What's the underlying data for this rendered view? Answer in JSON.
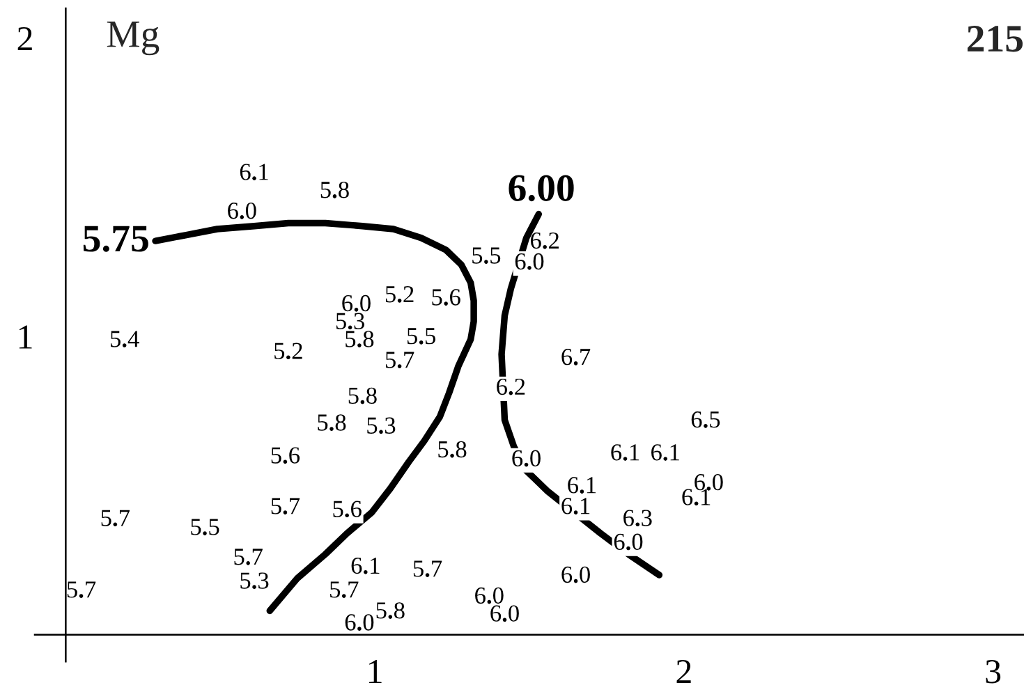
{
  "chart_data": {
    "type": "line",
    "title": "215",
    "ylabel": "Mg",
    "xlim": [
      -0.1,
      3.1
    ],
    "ylim": [
      -0.09,
      2.1
    ],
    "xticks": [
      1,
      2,
      3
    ],
    "yticks": [
      1,
      2
    ],
    "line_style": "solid",
    "series": [
      {
        "name": "5.75",
        "color": "#000000",
        "x": [
          0.29,
          0.39,
          0.49,
          0.61,
          0.72,
          0.84,
          0.96,
          1.06,
          1.15,
          1.23,
          1.28,
          1.31,
          1.32,
          1.32,
          1.31,
          1.27,
          1.24,
          1.21,
          1.16,
          1.11,
          1.05,
          0.99,
          0.91,
          0.84,
          0.75,
          0.66
        ],
        "values": [
          1.32,
          1.34,
          1.36,
          1.37,
          1.38,
          1.38,
          1.37,
          1.36,
          1.33,
          1.29,
          1.24,
          1.18,
          1.12,
          1.05,
          0.99,
          0.9,
          0.81,
          0.73,
          0.65,
          0.58,
          0.49,
          0.41,
          0.34,
          0.27,
          0.19,
          0.08
        ]
      },
      {
        "name": "6.00",
        "color": "#000000",
        "x": [
          1.53,
          1.49,
          1.44,
          1.42,
          1.41,
          1.42,
          1.45,
          1.49,
          1.56,
          1.73,
          1.82,
          1.92
        ],
        "values": [
          1.41,
          1.33,
          1.16,
          1.07,
          0.94,
          0.72,
          0.63,
          0.55,
          0.48,
          0.34,
          0.27,
          0.2
        ]
      },
      {
        "type": "scatter",
        "marker": "circle",
        "color": "#000000",
        "x": [
          0.57,
          0.61,
          0.87,
          1.36,
          1.55,
          1.5,
          1.08,
          1.23,
          0.94,
          0.92,
          0.95,
          1.15,
          0.19,
          0.72,
          1.08,
          1.65,
          1.44,
          0.96,
          0.86,
          1.02,
          2.07,
          0.71,
          1.25,
          1.49,
          1.81,
          1.94,
          2.08,
          1.67,
          1.65,
          2.04,
          0.16,
          0.45,
          0.71,
          0.91,
          1.85,
          1.82,
          0.59,
          0.61,
          0.97,
          1.17,
          0.9,
          0.05,
          1.65,
          1.05,
          0.95,
          1.37,
          1.42
        ],
        "values": [
          1.4,
          1.53,
          1.47,
          1.25,
          1.3,
          1.23,
          1.12,
          1.11,
          1.09,
          1.03,
          0.97,
          0.98,
          0.97,
          0.93,
          0.9,
          0.91,
          0.81,
          0.78,
          0.69,
          0.68,
          0.7,
          0.58,
          0.6,
          0.57,
          0.59,
          0.59,
          0.49,
          0.48,
          0.41,
          0.44,
          0.37,
          0.34,
          0.41,
          0.4,
          0.37,
          0.29,
          0.24,
          0.16,
          0.21,
          0.2,
          0.13,
          0.13,
          0.18,
          0.06,
          0.02,
          0.11,
          0.05
        ]
      }
    ],
    "annotations": [
      {
        "text": "6.0",
        "x": 0.57,
        "y": 1.4
      },
      {
        "text": "6.1",
        "x": 0.61,
        "y": 1.53
      },
      {
        "text": "5.8",
        "x": 0.87,
        "y": 1.47
      },
      {
        "text": "5.5",
        "x": 1.36,
        "y": 1.25
      },
      {
        "text": "6.2",
        "x": 1.55,
        "y": 1.3
      },
      {
        "text": "6.0",
        "x": 1.5,
        "y": 1.23
      },
      {
        "text": "5.2",
        "x": 1.08,
        "y": 1.12
      },
      {
        "text": "5.6",
        "x": 1.23,
        "y": 1.11
      },
      {
        "text": "6.0",
        "x": 0.94,
        "y": 1.09
      },
      {
        "text": "5.3",
        "x": 0.92,
        "y": 1.03
      },
      {
        "text": "5.8",
        "x": 0.95,
        "y": 0.97
      },
      {
        "text": "5.5",
        "x": 1.15,
        "y": 0.98
      },
      {
        "text": "5.4",
        "x": 0.19,
        "y": 0.97
      },
      {
        "text": "5.2",
        "x": 0.72,
        "y": 0.93
      },
      {
        "text": "5.7",
        "x": 1.08,
        "y": 0.9
      },
      {
        "text": "6.7",
        "x": 1.65,
        "y": 0.91
      },
      {
        "text": "6.2",
        "x": 1.44,
        "y": 0.81
      },
      {
        "text": "5.8",
        "x": 0.96,
        "y": 0.78
      },
      {
        "text": "5.8",
        "x": 0.86,
        "y": 0.69
      },
      {
        "text": "5.3",
        "x": 1.02,
        "y": 0.68
      },
      {
        "text": "6.5",
        "x": 2.07,
        "y": 0.7
      },
      {
        "text": "5.6",
        "x": 0.71,
        "y": 0.58
      },
      {
        "text": "5.8",
        "x": 1.25,
        "y": 0.6
      },
      {
        "text": "6.0",
        "x": 1.49,
        "y": 0.57
      },
      {
        "text": "6.1",
        "x": 1.81,
        "y": 0.59
      },
      {
        "text": "6.1",
        "x": 1.94,
        "y": 0.59
      },
      {
        "text": "6.0",
        "x": 2.08,
        "y": 0.49
      },
      {
        "text": "6.1",
        "x": 1.67,
        "y": 0.48
      },
      {
        "text": "6.1",
        "x": 1.65,
        "y": 0.41
      },
      {
        "text": "6.1",
        "x": 2.04,
        "y": 0.44
      },
      {
        "text": "5.7",
        "x": 0.16,
        "y": 0.37
      },
      {
        "text": "5.5",
        "x": 0.45,
        "y": 0.34
      },
      {
        "text": "5.7",
        "x": 0.71,
        "y": 0.41
      },
      {
        "text": "5.6",
        "x": 0.91,
        "y": 0.4
      },
      {
        "text": "6.3",
        "x": 1.85,
        "y": 0.37
      },
      {
        "text": "6.0",
        "x": 1.82,
        "y": 0.29
      },
      {
        "text": "5.7",
        "x": 0.59,
        "y": 0.24
      },
      {
        "text": "5.3",
        "x": 0.61,
        "y": 0.16
      },
      {
        "text": "6.1",
        "x": 0.97,
        "y": 0.21
      },
      {
        "text": "5.7",
        "x": 1.17,
        "y": 0.2
      },
      {
        "text": "5.7",
        "x": 0.9,
        "y": 0.13
      },
      {
        "text": "5.7",
        "x": 0.05,
        "y": 0.13
      },
      {
        "text": "6.0",
        "x": 1.65,
        "y": 0.18
      },
      {
        "text": "5.8",
        "x": 1.05,
        "y": 0.06
      },
      {
        "text": "6.0",
        "x": 0.95,
        "y": 0.02
      },
      {
        "text": "6.0",
        "x": 1.37,
        "y": 0.11
      },
      {
        "text": "6.0",
        "x": 1.42,
        "y": 0.05
      }
    ]
  }
}
